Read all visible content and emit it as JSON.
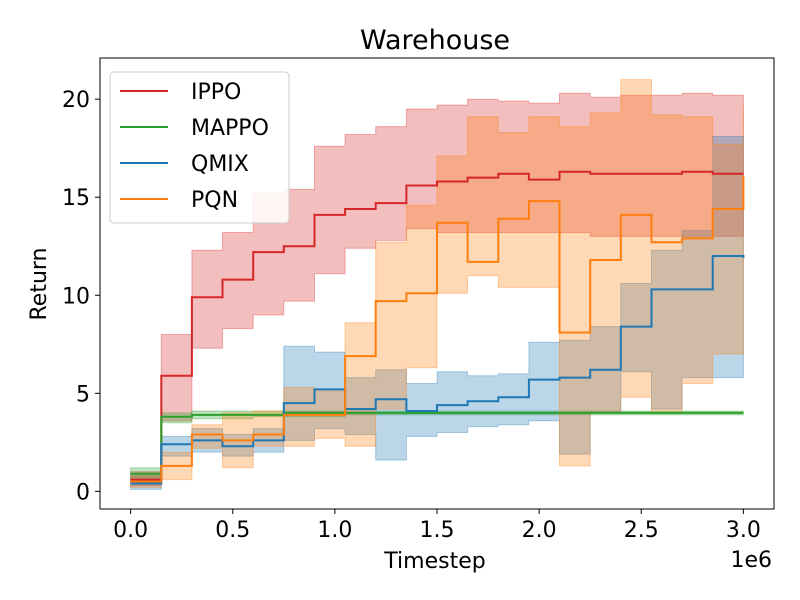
{
  "chart_data": {
    "type": "line",
    "title": "Warehouse",
    "xlabel": "Timestep",
    "ylabel": "Return",
    "x_offset_label": "1e6",
    "xlim": [
      -0.15,
      3.15
    ],
    "ylim": [
      -0.9,
      22.1
    ],
    "xticks": [
      0.0,
      0.5,
      1.0,
      1.5,
      2.0,
      2.5,
      3.0
    ],
    "xtick_labels": [
      "0.0",
      "0.5",
      "1.0",
      "1.5",
      "2.0",
      "2.5",
      "3.0"
    ],
    "yticks": [
      0,
      5,
      10,
      15,
      20
    ],
    "ytick_labels": [
      "0",
      "5",
      "10",
      "15",
      "20"
    ],
    "grid": false,
    "legend_position": "top-left",
    "x": [
      0.0,
      0.15,
      0.3,
      0.45,
      0.6,
      0.75,
      0.9,
      1.05,
      1.2,
      1.35,
      1.5,
      1.65,
      1.8,
      1.95,
      2.1,
      2.25,
      2.4,
      2.55,
      2.7,
      2.85,
      3.0
    ],
    "series": [
      {
        "name": "IPPO",
        "color": "#d62728",
        "mean": [
          0.6,
          5.9,
          9.9,
          10.8,
          12.2,
          12.5,
          14.1,
          14.4,
          14.7,
          15.6,
          15.8,
          16.0,
          16.2,
          15.9,
          16.3,
          16.2,
          16.2,
          16.2,
          16.3,
          16.2,
          16.2
        ],
        "lower": [
          0.3,
          3.6,
          7.3,
          8.3,
          9.0,
          9.7,
          11.1,
          12.4,
          12.8,
          13.4,
          13.2,
          13.2,
          13.2,
          13.2,
          13.2,
          13.0,
          13.0,
          13.0,
          13.0,
          13.0,
          13.0
        ],
        "upper": [
          1.0,
          8.0,
          12.3,
          13.2,
          15.2,
          15.4,
          17.6,
          18.2,
          18.6,
          19.5,
          19.7,
          20.0,
          19.9,
          19.8,
          20.3,
          20.1,
          20.2,
          20.2,
          20.3,
          20.2,
          20.2
        ]
      },
      {
        "name": "MAPPO",
        "color": "#2ca02c",
        "mean": [
          0.9,
          3.8,
          3.9,
          3.9,
          3.9,
          4.0,
          4.0,
          4.0,
          4.0,
          4.0,
          4.0,
          4.0,
          4.0,
          4.0,
          4.0,
          4.0,
          4.0,
          4.0,
          4.0,
          4.0,
          4.0
        ],
        "lower": [
          0.6,
          3.5,
          3.7,
          3.7,
          3.8,
          3.8,
          3.8,
          3.9,
          3.9,
          3.9,
          3.9,
          3.9,
          3.9,
          3.9,
          3.9,
          3.9,
          3.9,
          3.9,
          3.9,
          3.9,
          3.9
        ],
        "upper": [
          1.2,
          4.0,
          4.1,
          4.1,
          4.1,
          4.1,
          4.1,
          4.1,
          4.1,
          4.1,
          4.1,
          4.1,
          4.1,
          4.1,
          4.1,
          4.1,
          4.1,
          4.1,
          4.1,
          4.1,
          4.1
        ]
      },
      {
        "name": "QMIX",
        "color": "#1f77b4",
        "mean": [
          0.4,
          2.4,
          2.6,
          2.3,
          2.6,
          4.5,
          5.2,
          4.2,
          4.7,
          4.1,
          4.4,
          4.6,
          4.8,
          5.7,
          5.8,
          6.2,
          8.4,
          10.3,
          10.3,
          12.0,
          11.9
        ],
        "lower": [
          0.1,
          1.8,
          2.0,
          1.8,
          2.0,
          2.6,
          3.2,
          2.9,
          1.6,
          2.8,
          3.0,
          3.3,
          3.4,
          3.6,
          1.9,
          4.0,
          6.1,
          4.2,
          5.8,
          5.8,
          5.8
        ],
        "upper": [
          0.8,
          2.8,
          3.2,
          2.9,
          3.2,
          7.4,
          7.1,
          5.8,
          6.2,
          5.5,
          6.1,
          5.9,
          6.0,
          7.6,
          7.7,
          8.4,
          10.6,
          12.3,
          13.3,
          18.1,
          18.1
        ]
      },
      {
        "name": "PQN",
        "color": "#ff7f0e",
        "mean": [
          0.5,
          1.3,
          2.9,
          2.6,
          2.9,
          3.9,
          3.9,
          6.9,
          9.7,
          10.1,
          13.7,
          11.7,
          13.9,
          14.8,
          8.1,
          11.8,
          14.1,
          12.7,
          12.9,
          14.4,
          16.1
        ],
        "lower": [
          0.2,
          0.6,
          2.2,
          1.2,
          2.3,
          2.3,
          2.7,
          2.3,
          4.2,
          6.3,
          10.1,
          11.0,
          10.4,
          10.4,
          1.3,
          4.0,
          4.8,
          4.0,
          5.5,
          7.0,
          12.6
        ],
        "upper": [
          0.8,
          2.0,
          3.4,
          4.0,
          4.1,
          5.3,
          5.1,
          8.6,
          12.7,
          14.6,
          17.1,
          19.1,
          18.3,
          19.1,
          18.6,
          19.3,
          21.0,
          19.2,
          19.1,
          17.7,
          19.7
        ]
      }
    ]
  }
}
